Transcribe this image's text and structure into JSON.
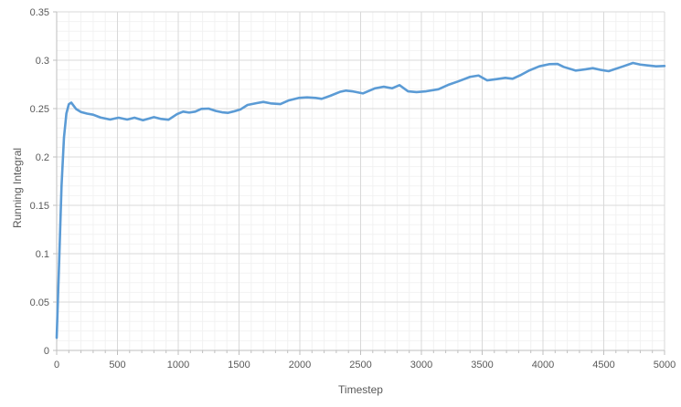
{
  "colors": {
    "background": "#FFFFFF",
    "line": "#5B9BD5",
    "axis": "#BFBFBF",
    "grid_major": "#D9D9D9",
    "grid_minor": "#F2F2F2",
    "tick_text": "#595959"
  },
  "chart_data": {
    "type": "line",
    "title": "",
    "xlabel": "Timestep",
    "ylabel": "Running Integral",
    "xlim": [
      0,
      5000
    ],
    "ylim": [
      0,
      0.35
    ],
    "x_major_step": 500,
    "x_minor_step": 100,
    "y_major_step": 0.05,
    "y_minor_step": 0.01,
    "x_tick_labels": [
      "0",
      "500",
      "1000",
      "1500",
      "2000",
      "2500",
      "3000",
      "3500",
      "4000",
      "4500",
      "5000"
    ],
    "y_tick_labels": [
      "0",
      "0.05",
      "0.1",
      "0.15",
      "0.2",
      "0.25",
      "0.3",
      "0.35"
    ],
    "grid": "major+minor",
    "legend": "none",
    "series": [
      {
        "name": "Running Integral",
        "color": "#5B9BD5",
        "x": [
          0,
          20,
          40,
          60,
          80,
          100,
          120,
          160,
          200,
          250,
          300,
          360,
          440,
          510,
          580,
          640,
          710,
          800,
          860,
          920,
          990,
          1040,
          1090,
          1140,
          1190,
          1250,
          1310,
          1360,
          1410,
          1460,
          1510,
          1570,
          1650,
          1700,
          1760,
          1840,
          1910,
          1990,
          2060,
          2130,
          2180,
          2250,
          2330,
          2380,
          2430,
          2520,
          2620,
          2690,
          2760,
          2820,
          2890,
          2960,
          3040,
          3140,
          3220,
          3300,
          3400,
          3470,
          3540,
          3620,
          3690,
          3750,
          3820,
          3890,
          3970,
          4050,
          4120,
          4170,
          4270,
          4350,
          4410,
          4480,
          4540,
          4660,
          4740,
          4800,
          4860,
          4930,
          5000
        ],
        "y": [
          0.013,
          0.09,
          0.17,
          0.22,
          0.245,
          0.2545,
          0.2562,
          0.2495,
          0.2465,
          0.2448,
          0.2437,
          0.2408,
          0.2387,
          0.2406,
          0.2387,
          0.2406,
          0.238,
          0.2412,
          0.2393,
          0.2385,
          0.2443,
          0.2469,
          0.2459,
          0.2469,
          0.2497,
          0.25,
          0.2475,
          0.2462,
          0.2456,
          0.2472,
          0.249,
          0.2538,
          0.2558,
          0.2569,
          0.2554,
          0.2547,
          0.2585,
          0.261,
          0.2616,
          0.261,
          0.2601,
          0.2632,
          0.2673,
          0.2686,
          0.2679,
          0.2657,
          0.271,
          0.2726,
          0.271,
          0.2742,
          0.2679,
          0.267,
          0.2679,
          0.27,
          0.2745,
          0.278,
          0.2828,
          0.2842,
          0.2792,
          0.2805,
          0.2818,
          0.2808,
          0.2849,
          0.2896,
          0.2937,
          0.2959,
          0.2962,
          0.2931,
          0.2893,
          0.2906,
          0.2918,
          0.2899,
          0.2887,
          0.2937,
          0.2972,
          0.2955,
          0.2946,
          0.2937,
          0.294
        ]
      }
    ]
  }
}
